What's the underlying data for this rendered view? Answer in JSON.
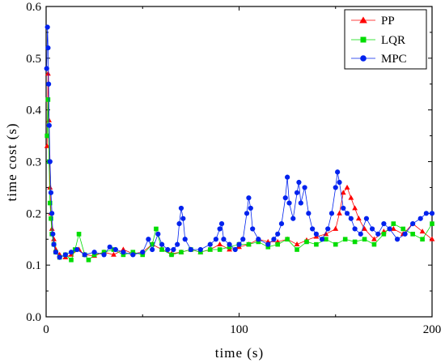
{
  "chart_data": {
    "type": "line",
    "xlabel": "time (s)",
    "ylabel": "time cost (s)",
    "xlim": [
      0,
      200
    ],
    "ylim": [
      0.0,
      0.6
    ],
    "x_ticks": [
      "0",
      "100",
      "200"
    ],
    "y_ticks": [
      "0.0",
      "0.1",
      "0.2",
      "0.3",
      "0.4",
      "0.5",
      "0.6"
    ],
    "grid": false,
    "legend_position": "top-right",
    "series": [
      {
        "name": "PP",
        "color": "#ff0000",
        "marker": "triangle",
        "points": [
          [
            0.5,
            0.33
          ],
          [
            1.0,
            0.47
          ],
          [
            1.5,
            0.38
          ],
          [
            2.0,
            0.25
          ],
          [
            2.5,
            0.2
          ],
          [
            3.0,
            0.17
          ],
          [
            4.0,
            0.15
          ],
          [
            5.0,
            0.13
          ],
          [
            7,
            0.12
          ],
          [
            10,
            0.115
          ],
          [
            13,
            0.12
          ],
          [
            17,
            0.13
          ],
          [
            20,
            0.12
          ],
          [
            25,
            0.118
          ],
          [
            30,
            0.125
          ],
          [
            35,
            0.12
          ],
          [
            40,
            0.13
          ],
          [
            45,
            0.122
          ],
          [
            50,
            0.125
          ],
          [
            55,
            0.14
          ],
          [
            60,
            0.13
          ],
          [
            65,
            0.122
          ],
          [
            70,
            0.125
          ],
          [
            75,
            0.13
          ],
          [
            80,
            0.125
          ],
          [
            85,
            0.13
          ],
          [
            90,
            0.14
          ],
          [
            95,
            0.13
          ],
          [
            100,
            0.135
          ],
          [
            105,
            0.14
          ],
          [
            110,
            0.15
          ],
          [
            115,
            0.145
          ],
          [
            120,
            0.145
          ],
          [
            125,
            0.15
          ],
          [
            130,
            0.14
          ],
          [
            135,
            0.148
          ],
          [
            140,
            0.155
          ],
          [
            145,
            0.16
          ],
          [
            150,
            0.17
          ],
          [
            152,
            0.2
          ],
          [
            154,
            0.24
          ],
          [
            156,
            0.25
          ],
          [
            158,
            0.23
          ],
          [
            160,
            0.21
          ],
          [
            162,
            0.19
          ],
          [
            165,
            0.17
          ],
          [
            170,
            0.15
          ],
          [
            175,
            0.165
          ],
          [
            180,
            0.17
          ],
          [
            185,
            0.16
          ],
          [
            190,
            0.18
          ],
          [
            195,
            0.165
          ],
          [
            200,
            0.15
          ]
        ]
      },
      {
        "name": "LQR",
        "color": "#00dd00",
        "marker": "square",
        "points": [
          [
            0.5,
            0.35
          ],
          [
            1.0,
            0.42
          ],
          [
            1.5,
            0.3
          ],
          [
            2.0,
            0.22
          ],
          [
            2.5,
            0.19
          ],
          [
            3.0,
            0.16
          ],
          [
            4.0,
            0.14
          ],
          [
            5.0,
            0.125
          ],
          [
            7,
            0.115
          ],
          [
            10,
            0.12
          ],
          [
            13,
            0.11
          ],
          [
            15,
            0.13
          ],
          [
            17,
            0.16
          ],
          [
            20,
            0.12
          ],
          [
            22,
            0.11
          ],
          [
            25,
            0.12
          ],
          [
            30,
            0.125
          ],
          [
            35,
            0.13
          ],
          [
            40,
            0.12
          ],
          [
            45,
            0.125
          ],
          [
            50,
            0.12
          ],
          [
            55,
            0.14
          ],
          [
            57,
            0.17
          ],
          [
            60,
            0.13
          ],
          [
            65,
            0.12
          ],
          [
            70,
            0.125
          ],
          [
            75,
            0.13
          ],
          [
            80,
            0.125
          ],
          [
            85,
            0.13
          ],
          [
            90,
            0.13
          ],
          [
            95,
            0.135
          ],
          [
            100,
            0.14
          ],
          [
            105,
            0.14
          ],
          [
            110,
            0.145
          ],
          [
            115,
            0.135
          ],
          [
            120,
            0.14
          ],
          [
            125,
            0.15
          ],
          [
            130,
            0.13
          ],
          [
            135,
            0.145
          ],
          [
            140,
            0.14
          ],
          [
            145,
            0.15
          ],
          [
            150,
            0.14
          ],
          [
            155,
            0.15
          ],
          [
            160,
            0.145
          ],
          [
            165,
            0.15
          ],
          [
            170,
            0.14
          ],
          [
            175,
            0.16
          ],
          [
            180,
            0.18
          ],
          [
            185,
            0.17
          ],
          [
            190,
            0.16
          ],
          [
            195,
            0.15
          ],
          [
            200,
            0.18
          ]
        ]
      },
      {
        "name": "MPC",
        "color": "#0022ee",
        "marker": "circle",
        "points": [
          [
            0.3,
            0.48
          ],
          [
            0.7,
            0.56
          ],
          [
            1.0,
            0.52
          ],
          [
            1.3,
            0.45
          ],
          [
            1.6,
            0.37
          ],
          [
            2.0,
            0.3
          ],
          [
            2.5,
            0.24
          ],
          [
            3.0,
            0.2
          ],
          [
            3.5,
            0.16
          ],
          [
            4.0,
            0.14
          ],
          [
            5.0,
            0.125
          ],
          [
            7,
            0.115
          ],
          [
            10,
            0.12
          ],
          [
            13,
            0.125
          ],
          [
            16,
            0.13
          ],
          [
            20,
            0.12
          ],
          [
            25,
            0.125
          ],
          [
            30,
            0.12
          ],
          [
            33,
            0.135
          ],
          [
            36,
            0.13
          ],
          [
            40,
            0.125
          ],
          [
            45,
            0.12
          ],
          [
            50,
            0.125
          ],
          [
            53,
            0.15
          ],
          [
            55,
            0.13
          ],
          [
            58,
            0.16
          ],
          [
            60,
            0.14
          ],
          [
            63,
            0.13
          ],
          [
            66,
            0.13
          ],
          [
            68,
            0.14
          ],
          [
            69,
            0.18
          ],
          [
            70,
            0.21
          ],
          [
            71,
            0.19
          ],
          [
            72,
            0.15
          ],
          [
            75,
            0.13
          ],
          [
            80,
            0.13
          ],
          [
            85,
            0.14
          ],
          [
            88,
            0.15
          ],
          [
            90,
            0.17
          ],
          [
            91,
            0.18
          ],
          [
            92,
            0.15
          ],
          [
            95,
            0.14
          ],
          [
            98,
            0.13
          ],
          [
            100,
            0.14
          ],
          [
            102,
            0.15
          ],
          [
            104,
            0.2
          ],
          [
            105,
            0.23
          ],
          [
            106,
            0.21
          ],
          [
            107,
            0.17
          ],
          [
            110,
            0.15
          ],
          [
            115,
            0.14
          ],
          [
            118,
            0.15
          ],
          [
            120,
            0.16
          ],
          [
            122,
            0.18
          ],
          [
            124,
            0.23
          ],
          [
            125,
            0.27
          ],
          [
            126,
            0.22
          ],
          [
            128,
            0.19
          ],
          [
            130,
            0.24
          ],
          [
            131,
            0.26
          ],
          [
            132,
            0.22
          ],
          [
            134,
            0.25
          ],
          [
            136,
            0.2
          ],
          [
            138,
            0.17
          ],
          [
            140,
            0.16
          ],
          [
            143,
            0.15
          ],
          [
            146,
            0.17
          ],
          [
            148,
            0.2
          ],
          [
            150,
            0.25
          ],
          [
            151,
            0.28
          ],
          [
            152,
            0.26
          ],
          [
            154,
            0.21
          ],
          [
            156,
            0.2
          ],
          [
            158,
            0.19
          ],
          [
            160,
            0.17
          ],
          [
            163,
            0.16
          ],
          [
            166,
            0.19
          ],
          [
            169,
            0.17
          ],
          [
            172,
            0.16
          ],
          [
            175,
            0.18
          ],
          [
            178,
            0.17
          ],
          [
            182,
            0.15
          ],
          [
            186,
            0.16
          ],
          [
            190,
            0.18
          ],
          [
            194,
            0.19
          ],
          [
            197,
            0.2
          ],
          [
            200,
            0.2
          ]
        ]
      }
    ]
  }
}
